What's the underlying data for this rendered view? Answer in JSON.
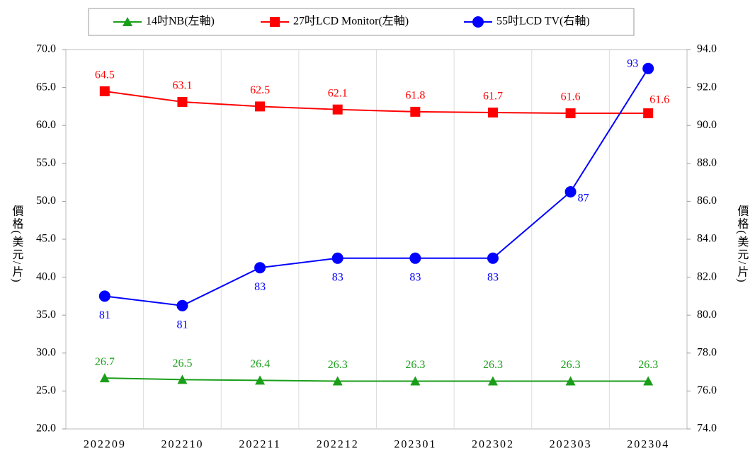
{
  "chart_data": {
    "type": "line",
    "categories": [
      "202209",
      "202210",
      "202211",
      "202212",
      "202301",
      "202302",
      "202303",
      "202304"
    ],
    "series": [
      {
        "name": "14吋NB(左軸)",
        "color": "#1a9e1a",
        "marker": "triangle",
        "values": [
          26.7,
          26.5,
          26.4,
          26.3,
          26.3,
          26.3,
          26.3,
          26.3
        ]
      },
      {
        "name": "27吋LCD Monitor(左軸)",
        "color": "#ff0000",
        "marker": "square",
        "values": [
          64.5,
          63.1,
          62.5,
          62.1,
          61.8,
          61.7,
          61.6,
          61.6
        ]
      },
      {
        "name": "55吋LCD TV(右軸)",
        "color": "#0000ff",
        "marker": "circle",
        "axis": "y2",
        "values": [
          81,
          80.5,
          82.5,
          83,
          83,
          83,
          86.5,
          93
        ],
        "value_labels": [
          "81",
          "81",
          "83",
          "83",
          "83",
          "83",
          "87",
          "93"
        ]
      }
    ],
    "ylabel": "價格(美元/片)",
    "y2label": "價格(美元/片)",
    "ylim": [
      20,
      70
    ],
    "yticks": [
      {
        "value": 20,
        "label": "20.0"
      },
      {
        "value": 25,
        "label": "25.0"
      },
      {
        "value": 30,
        "label": "30.0"
      },
      {
        "value": 35,
        "label": "35.0"
      },
      {
        "value": 40,
        "label": "40.0"
      },
      {
        "value": 45,
        "label": "45.0"
      },
      {
        "value": 50,
        "label": "50.0"
      },
      {
        "value": 55,
        "label": "55.0"
      },
      {
        "value": 60,
        "label": "60.0"
      },
      {
        "value": 65,
        "label": "65.0"
      },
      {
        "value": 70,
        "label": "70.0"
      }
    ],
    "y2lim": [
      74,
      94
    ],
    "y2ticks": [
      {
        "value": 74,
        "label": "74.0"
      },
      {
        "value": 76,
        "label": "76.0"
      },
      {
        "value": 78,
        "label": "78.0"
      },
      {
        "value": 80,
        "label": "80.0"
      },
      {
        "value": 82,
        "label": "82.0"
      },
      {
        "value": 84,
        "label": "84.0"
      },
      {
        "value": 86,
        "label": "86.0"
      },
      {
        "value": 88,
        "label": "88.0"
      },
      {
        "value": 90,
        "label": "90.0"
      },
      {
        "value": 92,
        "label": "92.0"
      },
      {
        "value": 94,
        "label": "94.0"
      }
    ],
    "legend": "top"
  }
}
